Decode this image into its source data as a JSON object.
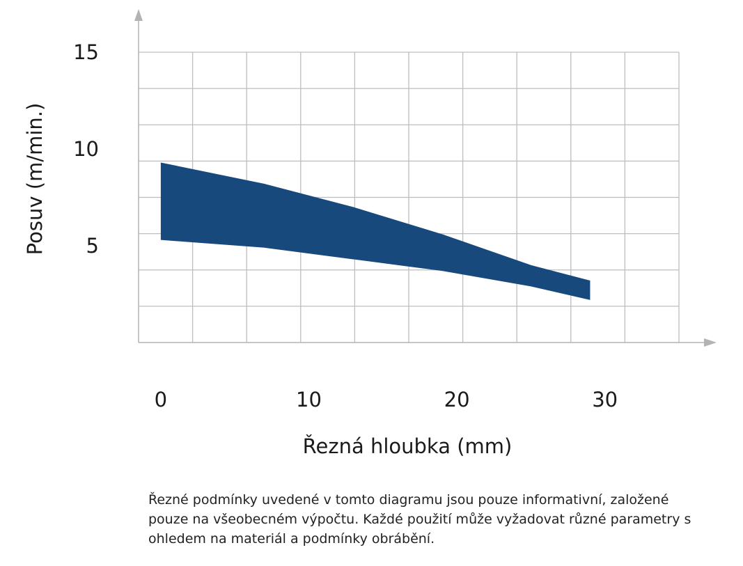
{
  "chart_data": {
    "type": "area",
    "xlabel": "Řezná hloubka (mm)",
    "ylabel": "Posuv (m/min.)",
    "xlim": [
      -1.5,
      35
    ],
    "ylim": [
      0,
      15
    ],
    "x_ticks": [
      "0",
      "10",
      "20",
      "30"
    ],
    "x_tick_values": [
      0,
      10,
      20,
      30
    ],
    "y_ticks": [
      "5",
      "10",
      "15"
    ],
    "y_tick_values": [
      5,
      10,
      15
    ],
    "grid": true,
    "series": [
      {
        "upper": [
          [
            0,
            9.3
          ],
          [
            7,
            8.2
          ],
          [
            13,
            7.0
          ],
          [
            19,
            5.6
          ],
          [
            25,
            4.0
          ],
          [
            29,
            3.2
          ]
        ],
        "lower": [
          [
            0,
            5.3
          ],
          [
            7,
            4.9
          ],
          [
            13,
            4.3
          ],
          [
            19,
            3.7
          ],
          [
            25,
            2.9
          ],
          [
            29,
            2.2
          ]
        ]
      }
    ],
    "colors": {
      "fill": "#17497c",
      "grid": "#bdbdbd",
      "axis": "#b3b3b3"
    }
  },
  "note_lines": [
    "Řezné podmínky uvedené v tomto diagramu jsou pouze informativní, založené",
    "pouze na všeobecném výpočtu. Každé použití může vyžadovat různé parametry s",
    "ohledem na materiál a podmínky obrábění."
  ]
}
